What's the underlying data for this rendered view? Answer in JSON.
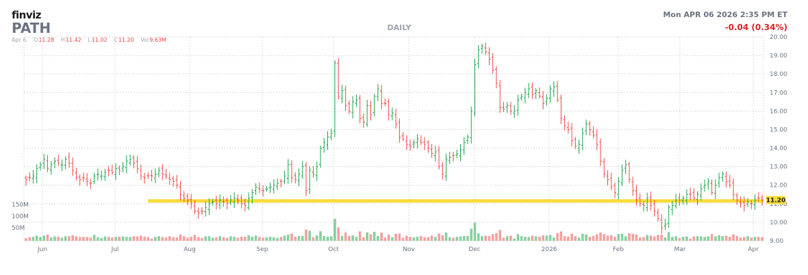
{
  "header": {
    "logo": "finviz",
    "ticker": "PATH",
    "timeframe": "DAILY",
    "datetime": "Mon APR 06 2026 2:35 PM ET",
    "change": "-0.04 (0.34%)",
    "ohlc": {
      "date": "Apr 6",
      "o_label": "O",
      "o": "11.28",
      "h_label": "H",
      "h": "11.42",
      "l_label": "L",
      "l": "11.02",
      "c_label": "C",
      "c": "11.20",
      "vol_label": "Vol",
      "vol": "9.63M"
    }
  },
  "colors": {
    "up": "#16a34a",
    "down": "#ef4444",
    "up_vol": "#86cfa0",
    "down_vol": "#f2a0a0",
    "level": "#f7dc3a",
    "grid": "#d9d9d9"
  },
  "chart_data": {
    "type": "candlestick",
    "y_ticks": [
      "9.00",
      "10.00",
      "11.00",
      "12.00",
      "13.00",
      "14.00",
      "15.00",
      "16.00",
      "17.00",
      "18.00",
      "19.00",
      "20.00"
    ],
    "ylim": [
      9,
      20
    ],
    "volume_ticks": [
      "50M",
      "100M",
      "150M"
    ],
    "x_ticks": [
      "Jun",
      "Jul",
      "Aug",
      "Sep",
      "Oct",
      "Nov",
      "Dec",
      "2026",
      "Feb",
      "Mar",
      "Apr"
    ],
    "last_price_label": "11.20",
    "horizontal_level": 11.15,
    "closes": [
      12.3,
      12.4,
      12.5,
      12.9,
      13.1,
      13.4,
      12.9,
      13.1,
      13.3,
      13.2,
      13.1,
      13.4,
      13.2,
      12.8,
      12.4,
      12.3,
      12.4,
      12.2,
      12.1,
      12.5,
      12.6,
      12.5,
      12.7,
      12.8,
      12.7,
      12.9,
      12.8,
      13.0,
      13.3,
      13.4,
      13.2,
      12.9,
      12.5,
      12.4,
      12.5,
      12.5,
      12.6,
      12.8,
      12.6,
      12.5,
      12.3,
      12.2,
      12.0,
      11.5,
      11.3,
      11.2,
      11.0,
      10.6,
      10.5,
      10.6,
      10.8,
      11.0,
      11.1,
      11.0,
      11.2,
      11.1,
      11.0,
      11.2,
      11.3,
      11.2,
      11.0,
      10.9,
      11.3,
      11.6,
      11.9,
      11.8,
      11.7,
      11.8,
      11.9,
      12.0,
      12.1,
      12.2,
      12.5,
      13.1,
      12.4,
      12.3,
      12.6,
      13.0,
      11.7,
      12.8,
      12.6,
      13.0,
      14.0,
      14.3,
      14.6,
      14.8,
      18.6,
      16.8,
      17.1,
      16.3,
      16.0,
      16.5,
      16.6,
      15.6,
      15.4,
      16.3,
      15.8,
      16.8,
      17.2,
      16.4,
      16.4,
      15.8,
      15.9,
      15.3,
      14.6,
      14.5,
      14.2,
      14.1,
      14.3,
      14.5,
      14.3,
      14.2,
      14.0,
      13.7,
      13.8,
      13.0,
      12.6,
      13.4,
      13.5,
      13.6,
      13.7,
      13.9,
      14.3,
      14.6,
      16.0,
      18.5,
      19.3,
      19.5,
      19.2,
      18.8,
      18.2,
      17.5,
      16.2,
      16.1,
      16.3,
      16.0,
      16.0,
      16.6,
      16.8,
      17.0,
      17.2,
      16.9,
      17.1,
      16.8,
      16.4,
      16.7,
      17.2,
      17.3,
      16.6,
      15.6,
      15.2,
      15.0,
      14.4,
      14.1,
      14.2,
      14.8,
      15.3,
      15.0,
      14.7,
      14.2,
      13.3,
      12.6,
      12.3,
      11.9,
      11.6,
      12.2,
      12.8,
      13.1,
      12.3,
      11.7,
      11.2,
      11.0,
      10.9,
      11.3,
      10.9,
      10.6,
      10.2,
      9.7,
      9.9,
      10.8,
      10.9,
      11.2,
      11.2,
      11.3,
      11.5,
      11.5,
      11.3,
      11.5,
      11.8,
      12.0,
      12.2,
      11.6,
      12.0,
      12.4,
      12.6,
      12.2,
      12.0,
      11.5,
      11.2,
      11.0,
      10.9,
      11.1,
      11.0,
      11.2,
      11.3,
      11.2
    ]
  }
}
